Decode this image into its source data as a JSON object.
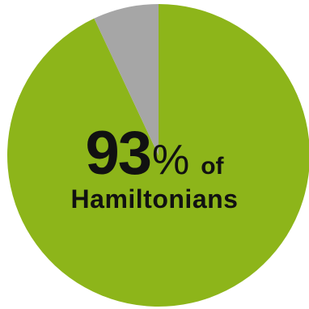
{
  "chart_data": {
    "type": "pie",
    "slices": [
      {
        "label": "Hamiltonians",
        "value": 93,
        "color": "#8db51a"
      },
      {
        "label": "",
        "value": 7,
        "color": "#a6a6a6"
      }
    ],
    "start": "top",
    "direction": "clockwise",
    "center_label": {
      "number": "93",
      "percent": "%",
      "word": "of",
      "subject": "Hamiltonians"
    }
  }
}
